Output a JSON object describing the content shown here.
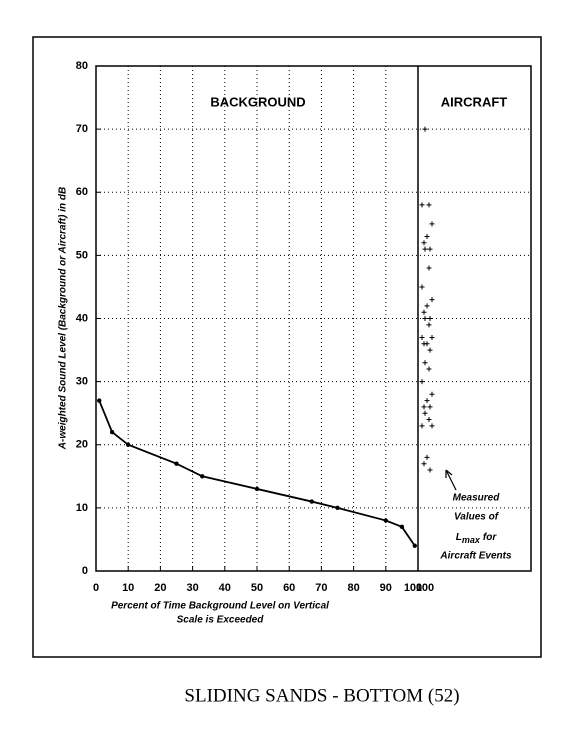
{
  "chart_data": {
    "type": "line",
    "title": "BACKGROUND",
    "panel_title": "AIRCRAFT",
    "y_label": "A-weighted Sound Level (Background or Aircraft) in dB",
    "x_label": [
      "Percent of Time Background Level on Vertical",
      "Scale is Exceeded"
    ],
    "x": [
      1,
      5,
      10,
      25,
      33,
      50,
      67,
      75,
      90,
      95,
      99
    ],
    "values": [
      27,
      22,
      20,
      17,
      15,
      13,
      11,
      10,
      8,
      7,
      4
    ],
    "color": "#000000",
    "aircraft_category": "100",
    "aircraft_values": [
      70,
      58,
      58,
      55,
      53,
      52,
      51,
      51,
      48,
      45,
      43,
      42,
      41,
      40,
      40,
      39,
      37,
      37,
      36,
      36,
      35,
      33,
      32,
      30,
      28,
      27,
      26,
      26,
      25,
      24,
      23,
      23,
      18,
      17,
      16
    ],
    "xlim": [
      0,
      100
    ],
    "xticks": [
      0,
      10,
      20,
      30,
      40,
      50,
      60,
      70,
      80,
      90,
      100
    ],
    "ylim": [
      0,
      80
    ],
    "yticks": [
      0,
      10,
      20,
      30,
      40,
      50,
      60,
      70,
      80
    ],
    "grid": true,
    "annotation": {
      "lines": [
        "Measured",
        "Values of"
      ],
      "symbol": "L",
      "subscript": "max",
      "after": "for",
      "last": "Aircraft Events"
    }
  },
  "caption": "SLIDING SANDS - BOTTOM (52)"
}
